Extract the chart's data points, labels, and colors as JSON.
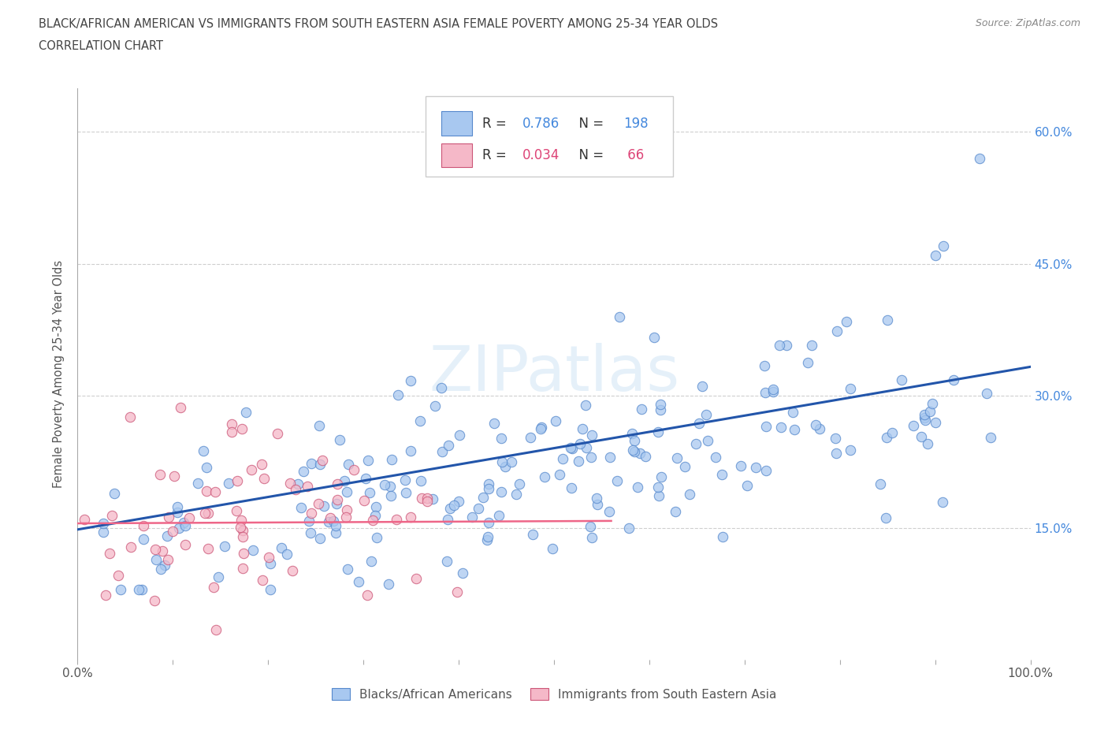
{
  "title_line1": "BLACK/AFRICAN AMERICAN VS IMMIGRANTS FROM SOUTH EASTERN ASIA FEMALE POVERTY AMONG 25-34 YEAR OLDS",
  "title_line2": "CORRELATION CHART",
  "source_text": "Source: ZipAtlas.com",
  "ylabel": "Female Poverty Among 25-34 Year Olds",
  "xlim": [
    0.0,
    1.0
  ],
  "ylim": [
    0.0,
    0.65
  ],
  "ytick_positions": [
    0.15,
    0.3,
    0.45,
    0.6
  ],
  "ytick_labels": [
    "15.0%",
    "30.0%",
    "45.0%",
    "60.0%"
  ],
  "blue_scatter_color": "#a8c8f0",
  "blue_scatter_edge": "#5588cc",
  "pink_scatter_color": "#f5b8c8",
  "pink_scatter_edge": "#cc5577",
  "blue_line_color": "#2255aa",
  "pink_line_color": "#ee6688",
  "legend_blue_label": "Blacks/African Americans",
  "legend_pink_label": "Immigrants from South Eastern Asia",
  "R_blue": 0.786,
  "N_blue": 198,
  "R_pink": 0.034,
  "N_pink": 66,
  "watermark": "ZIPatlas",
  "background_color": "#ffffff",
  "grid_color": "#bbbbbb",
  "title_color": "#444444",
  "blue_R_color": "#4488dd",
  "pink_R_color": "#dd4477",
  "legend_text_color": "#333333"
}
